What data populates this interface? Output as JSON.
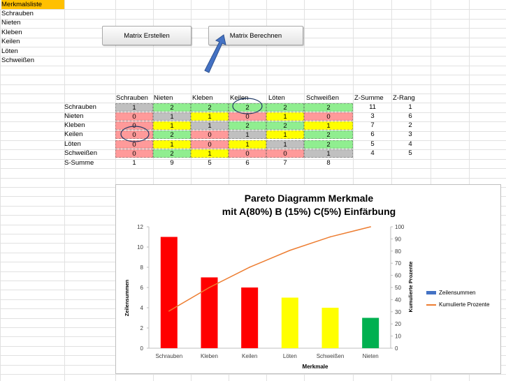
{
  "sheet": {
    "list_title": "Merkmalsliste",
    "list_items": [
      "Schrauben",
      "Nieten",
      "Kleben",
      "Keilen",
      "Löten",
      "Schweißen"
    ]
  },
  "buttons": {
    "create_label": "Matrix Erstellen",
    "compute_label": "Matrix Berechnen"
  },
  "matrix": {
    "columns": [
      "Schrauben",
      "Nieten",
      "Kleben",
      "Keilen",
      "Löten",
      "Schweißen"
    ],
    "z_sum_header": "Z-Summe",
    "z_rank_header": "Z-Rang",
    "rows": [
      {
        "label": "Schrauben",
        "values": [
          "1",
          "2",
          "2",
          "2",
          "2",
          "2"
        ],
        "colors": [
          "gray",
          "green",
          "green",
          "green",
          "green",
          "green"
        ],
        "z_sum": "11",
        "z_rank": "1"
      },
      {
        "label": "Nieten",
        "values": [
          "0",
          "1",
          "1",
          "0",
          "1",
          "0"
        ],
        "colors": [
          "red",
          "gray",
          "yellow",
          "red",
          "yellow",
          "red"
        ],
        "z_sum": "3",
        "z_rank": "6"
      },
      {
        "label": "Kleben",
        "values": [
          "0",
          "1",
          "1",
          "2",
          "2",
          "1"
        ],
        "colors": [
          "red",
          "yellow",
          "gray",
          "green",
          "green",
          "yellow"
        ],
        "z_sum": "7",
        "z_rank": "2"
      },
      {
        "label": "Keilen",
        "values": [
          "0",
          "2",
          "0",
          "1",
          "1",
          "2"
        ],
        "colors": [
          "red",
          "green",
          "red",
          "gray",
          "yellow",
          "green"
        ],
        "z_sum": "6",
        "z_rank": "3"
      },
      {
        "label": "Löten",
        "values": [
          "0",
          "1",
          "0",
          "1",
          "1",
          "2"
        ],
        "colors": [
          "red",
          "yellow",
          "red",
          "yellow",
          "gray",
          "green"
        ],
        "z_sum": "5",
        "z_rank": "4"
      },
      {
        "label": "Schweißen",
        "values": [
          "0",
          "2",
          "1",
          "0",
          "0",
          "1"
        ],
        "colors": [
          "red",
          "green",
          "yellow",
          "red",
          "red",
          "gray"
        ],
        "z_sum": "4",
        "z_rank": "5"
      }
    ],
    "s_sum_label": "S-Summe",
    "s_sum_values": [
      "1",
      "9",
      "5",
      "6",
      "7",
      "8"
    ]
  },
  "colors": {
    "green": "#90ee90",
    "red": "#ff9a9a",
    "yellow": "#ffff00",
    "gray": "#c0c0c0",
    "header_highlight": "#ffc000",
    "bar_red": "#ff0000",
    "bar_yellow": "#ffff00",
    "bar_green": "#00b050",
    "line_orange": "#ed7d31",
    "legend_blue": "#4472c4",
    "arrow_blue": "#4472c4"
  },
  "chart_data": {
    "type": "bar",
    "title_line1": "Pareto Diagramm Merkmale",
    "title_line2": "mit A(80%) B (15%) C(5%) Einfärbung",
    "xlabel": "Merkmale",
    "ylabel": "Zeilensummen",
    "y2label": "Kumulierte Prozente",
    "categories": [
      "Schrauben",
      "Kleben",
      "Keilen",
      "Löten",
      "Schweißen",
      "Nieten"
    ],
    "ylim": [
      0,
      12
    ],
    "yticks": [
      0,
      2,
      4,
      6,
      8,
      10,
      12
    ],
    "y2lim": [
      0,
      100
    ],
    "y2ticks": [
      0,
      10,
      20,
      30,
      40,
      50,
      60,
      70,
      80,
      90,
      100
    ],
    "series": [
      {
        "name": "Zeilensummen",
        "values": [
          11,
          7,
          6,
          5,
          4,
          3
        ],
        "bar_colors": [
          "bar_red",
          "bar_red",
          "bar_red",
          "bar_yellow",
          "bar_yellow",
          "bar_green"
        ]
      },
      {
        "name": "Kumulierte Prozente",
        "values": [
          30.6,
          50.0,
          66.7,
          80.6,
          91.7,
          100.0
        ],
        "axis": "secondary"
      }
    ],
    "legend_position": "right",
    "grid": false
  }
}
